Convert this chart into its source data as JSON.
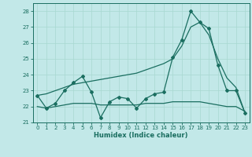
{
  "xlabel": "Humidex (Indice chaleur)",
  "background_color": "#c2e8e8",
  "grid_color": "#a8d8d0",
  "line_color": "#1a6e60",
  "xlim": [
    -0.5,
    23.5
  ],
  "ylim": [
    21.0,
    28.5
  ],
  "yticks": [
    21,
    22,
    23,
    24,
    25,
    26,
    27,
    28
  ],
  "xticks": [
    0,
    1,
    2,
    3,
    4,
    5,
    6,
    7,
    8,
    9,
    10,
    11,
    12,
    13,
    14,
    15,
    16,
    17,
    18,
    19,
    20,
    21,
    22,
    23
  ],
  "series_jagged": [
    22.7,
    21.9,
    22.2,
    23.0,
    23.5,
    23.9,
    22.9,
    21.3,
    22.3,
    22.6,
    22.5,
    21.9,
    22.5,
    22.8,
    22.9,
    25.1,
    26.2,
    28.0,
    27.3,
    26.9,
    24.6,
    23.0,
    23.0,
    21.6
  ],
  "series_flat": [
    22.0,
    21.9,
    22.0,
    22.1,
    22.2,
    22.2,
    22.2,
    22.1,
    22.1,
    22.1,
    22.1,
    22.1,
    22.2,
    22.2,
    22.2,
    22.3,
    22.3,
    22.3,
    22.3,
    22.2,
    22.1,
    22.0,
    22.0,
    21.7
  ],
  "series_trend": [
    22.7,
    22.8,
    23.0,
    23.2,
    23.4,
    23.5,
    23.6,
    23.7,
    23.8,
    23.9,
    24.0,
    24.1,
    24.3,
    24.5,
    24.7,
    25.0,
    25.8,
    27.0,
    27.3,
    26.5,
    25.0,
    23.8,
    23.2,
    21.6
  ]
}
